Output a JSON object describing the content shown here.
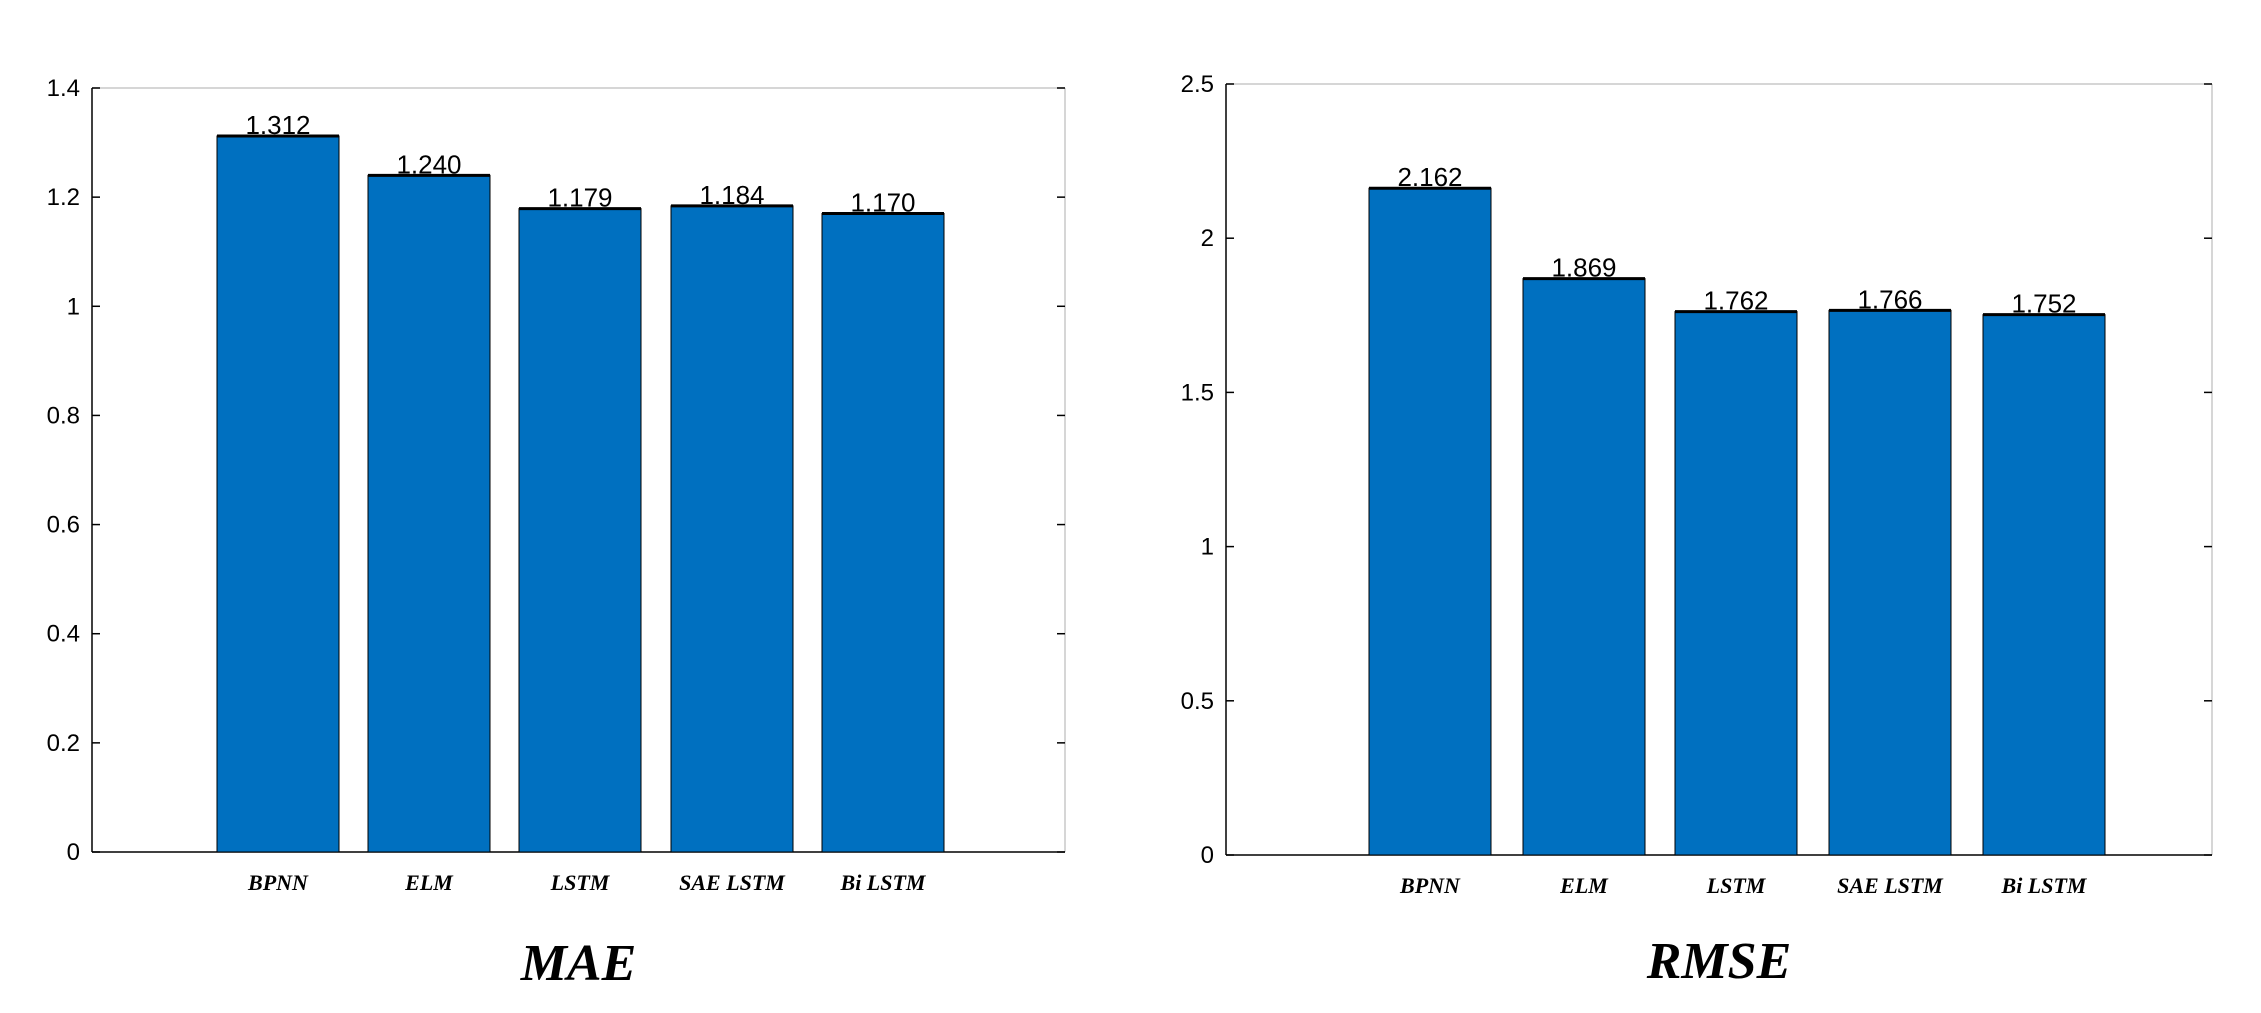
{
  "style": {
    "bar_color": "#0070C0",
    "bar_edge_color": "#000000",
    "axis_color": "#000000",
    "frame_color": "#c8c8c8"
  },
  "chart_data": [
    {
      "type": "bar",
      "title": "MAE",
      "xlabel": "",
      "ylabel": "",
      "categories": [
        "BPNN",
        "ELM",
        "LSTM",
        "SAE LSTM",
        "Bi LSTM"
      ],
      "values": [
        1.312,
        1.24,
        1.179,
        1.184,
        1.17
      ],
      "data_labels": [
        "1.312",
        "1.240",
        "1.179",
        "1.184",
        "1.170"
      ],
      "ylim": [
        0,
        1.4
      ],
      "yticks": [
        0,
        0.2,
        0.4,
        0.6,
        0.8,
        1,
        1.2,
        1.4
      ],
      "ytick_labels": [
        "0",
        "0.2",
        "0.4",
        "0.6",
        "0.8",
        "1",
        "1.2",
        "1.4"
      ],
      "grid": false,
      "legend": "none"
    },
    {
      "type": "bar",
      "title": "RMSE",
      "xlabel": "",
      "ylabel": "",
      "categories": [
        "BPNN",
        "ELM",
        "LSTM",
        "SAE LSTM",
        "Bi LSTM"
      ],
      "values": [
        2.162,
        1.869,
        1.762,
        1.766,
        1.752
      ],
      "data_labels": [
        "2.162",
        "1.869",
        "1.762",
        "1.766",
        "1.752"
      ],
      "ylim": [
        0,
        2.5
      ],
      "yticks": [
        0,
        0.5,
        1,
        1.5,
        2,
        2.5
      ],
      "ytick_labels": [
        "0",
        "0.5",
        "1",
        "1.5",
        "2",
        "2.5"
      ],
      "grid": false,
      "legend": "none"
    }
  ]
}
